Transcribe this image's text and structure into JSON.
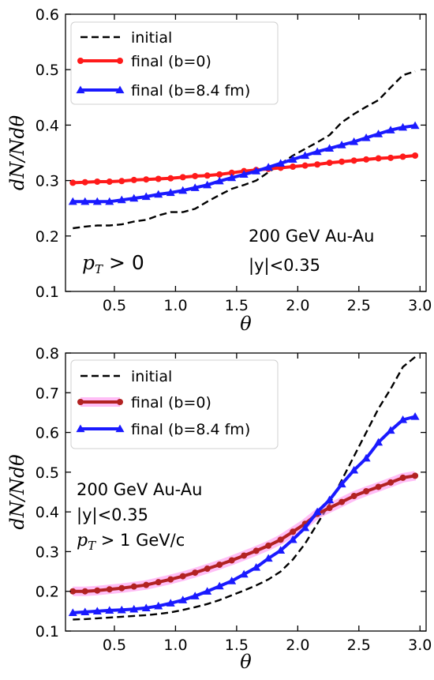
{
  "chart_data": [
    {
      "type": "line",
      "xlabel": "θ",
      "ylabel": "dN/Ndθ",
      "xlim": [
        0.1,
        3.05
      ],
      "ylim": [
        0.1,
        0.6
      ],
      "xticks": [
        0.5,
        1.0,
        1.5,
        2.0,
        2.5,
        3.0
      ],
      "xtick_labels": [
        "0.5",
        "1.0",
        "1.5",
        "2.0",
        "2.5",
        "3.0"
      ],
      "yticks": [
        0.1,
        0.2,
        0.3,
        0.4,
        0.5,
        0.6
      ],
      "ytick_labels": [
        "0.1",
        "0.2",
        "0.3",
        "0.4",
        "0.5",
        "0.6"
      ],
      "grid": false,
      "legend_position": "top-left",
      "series": [
        {
          "name": "initial",
          "color": "#000000",
          "style": "dashed",
          "x": [
            0.16,
            0.26,
            0.36,
            0.46,
            0.56,
            0.66,
            0.76,
            0.86,
            0.96,
            1.06,
            1.16,
            1.26,
            1.36,
            1.46,
            1.56,
            1.66,
            1.76,
            1.86,
            1.96,
            2.06,
            2.16,
            2.26,
            2.36,
            2.46,
            2.56,
            2.66,
            2.76,
            2.86,
            2.96
          ],
          "y": [
            0.214,
            0.217,
            0.219,
            0.219,
            0.221,
            0.226,
            0.229,
            0.237,
            0.243,
            0.243,
            0.249,
            0.262,
            0.274,
            0.285,
            0.292,
            0.3,
            0.315,
            0.33,
            0.345,
            0.357,
            0.369,
            0.382,
            0.405,
            0.42,
            0.433,
            0.445,
            0.468,
            0.49,
            0.497
          ]
        },
        {
          "name": "final (b=0)",
          "color": "#ff1a1a",
          "style": "solid",
          "marker": "circle",
          "x": [
            0.16,
            0.26,
            0.36,
            0.46,
            0.56,
            0.66,
            0.76,
            0.86,
            0.96,
            1.06,
            1.16,
            1.26,
            1.36,
            1.46,
            1.56,
            1.66,
            1.76,
            1.86,
            1.96,
            2.06,
            2.16,
            2.26,
            2.36,
            2.46,
            2.56,
            2.66,
            2.76,
            2.86,
            2.96
          ],
          "y": [
            0.296,
            0.297,
            0.298,
            0.298,
            0.299,
            0.301,
            0.302,
            0.303,
            0.304,
            0.306,
            0.308,
            0.309,
            0.311,
            0.314,
            0.317,
            0.319,
            0.321,
            0.323,
            0.325,
            0.327,
            0.329,
            0.332,
            0.334,
            0.336,
            0.338,
            0.34,
            0.341,
            0.343,
            0.345
          ]
        },
        {
          "name": "final (b=8.4 fm)",
          "color": "#1a1aff",
          "style": "solid",
          "marker": "triangle",
          "x": [
            0.16,
            0.26,
            0.36,
            0.46,
            0.56,
            0.66,
            0.76,
            0.86,
            0.96,
            1.06,
            1.16,
            1.26,
            1.36,
            1.46,
            1.56,
            1.66,
            1.76,
            1.86,
            1.96,
            2.06,
            2.16,
            2.26,
            2.36,
            2.46,
            2.56,
            2.66,
            2.76,
            2.86,
            2.96
          ],
          "y": [
            0.262,
            0.262,
            0.262,
            0.262,
            0.265,
            0.268,
            0.271,
            0.275,
            0.278,
            0.282,
            0.287,
            0.292,
            0.299,
            0.305,
            0.311,
            0.317,
            0.324,
            0.331,
            0.338,
            0.345,
            0.352,
            0.358,
            0.364,
            0.37,
            0.377,
            0.384,
            0.391,
            0.396,
            0.399
          ]
        }
      ],
      "annotations": {
        "line1": "200 GeV Au-Au",
        "line2": "|y|<0.35",
        "pt": "p",
        "pt_sub": "T",
        "pt_rest": " > 0"
      }
    },
    {
      "type": "line",
      "xlabel": "θ",
      "ylabel": "dN/Ndθ",
      "xlim": [
        0.1,
        3.05
      ],
      "ylim": [
        0.1,
        0.8
      ],
      "xticks": [
        0.5,
        1.0,
        1.5,
        2.0,
        2.5,
        3.0
      ],
      "xtick_labels": [
        "0.5",
        "1.0",
        "1.5",
        "2.0",
        "2.5",
        "3.0"
      ],
      "yticks": [
        0.1,
        0.2,
        0.3,
        0.4,
        0.5,
        0.6,
        0.7,
        0.8
      ],
      "ytick_labels": [
        "0.1",
        "0.2",
        "0.3",
        "0.4",
        "0.5",
        "0.6",
        "0.7",
        "0.8"
      ],
      "grid": false,
      "legend_position": "top-left",
      "series": [
        {
          "name": "initial",
          "color": "#000000",
          "style": "dashed",
          "x": [
            0.16,
            0.26,
            0.36,
            0.46,
            0.56,
            0.66,
            0.76,
            0.86,
            0.96,
            1.06,
            1.16,
            1.26,
            1.36,
            1.46,
            1.56,
            1.66,
            1.76,
            1.86,
            1.96,
            2.06,
            2.16,
            2.26,
            2.36,
            2.46,
            2.56,
            2.66,
            2.76,
            2.86,
            2.96
          ],
          "y": [
            0.129,
            0.13,
            0.132,
            0.134,
            0.136,
            0.138,
            0.14,
            0.143,
            0.147,
            0.153,
            0.16,
            0.168,
            0.178,
            0.19,
            0.202,
            0.215,
            0.23,
            0.25,
            0.28,
            0.32,
            0.37,
            0.42,
            0.48,
            0.54,
            0.6,
            0.66,
            0.71,
            0.765,
            0.79
          ]
        },
        {
          "name": "final (b=0)",
          "color": "#b22222",
          "band_color": "#ff88ee",
          "style": "solid",
          "marker": "circle",
          "x": [
            0.16,
            0.26,
            0.36,
            0.46,
            0.56,
            0.66,
            0.76,
            0.86,
            0.96,
            1.06,
            1.16,
            1.26,
            1.36,
            1.46,
            1.56,
            1.66,
            1.76,
            1.86,
            1.96,
            2.06,
            2.16,
            2.26,
            2.36,
            2.46,
            2.56,
            2.66,
            2.76,
            2.86,
            2.96
          ],
          "y": [
            0.2,
            0.2,
            0.202,
            0.205,
            0.208,
            0.212,
            0.216,
            0.223,
            0.23,
            0.238,
            0.247,
            0.257,
            0.267,
            0.278,
            0.29,
            0.302,
            0.315,
            0.33,
            0.35,
            0.37,
            0.395,
            0.41,
            0.425,
            0.44,
            0.452,
            0.463,
            0.474,
            0.486,
            0.491
          ]
        },
        {
          "name": "final (b=8.4 fm)",
          "color": "#1a1aff",
          "style": "solid",
          "marker": "triangle",
          "x": [
            0.16,
            0.26,
            0.36,
            0.46,
            0.56,
            0.66,
            0.76,
            0.86,
            0.96,
            1.06,
            1.16,
            1.26,
            1.36,
            1.46,
            1.56,
            1.66,
            1.76,
            1.86,
            1.96,
            2.06,
            2.16,
            2.26,
            2.36,
            2.46,
            2.56,
            2.66,
            2.76,
            2.86,
            2.96
          ],
          "y": [
            0.146,
            0.148,
            0.15,
            0.152,
            0.153,
            0.155,
            0.158,
            0.163,
            0.17,
            0.178,
            0.188,
            0.2,
            0.213,
            0.226,
            0.243,
            0.26,
            0.283,
            0.303,
            0.33,
            0.36,
            0.4,
            0.43,
            0.47,
            0.505,
            0.535,
            0.575,
            0.605,
            0.632,
            0.64
          ]
        }
      ],
      "annotations": {
        "line1": "200 GeV Au-Au",
        "line2": "|y|<0.35",
        "pt": "p",
        "pt_sub": "T",
        "pt_rest": " > 1 GeV/c"
      }
    }
  ]
}
